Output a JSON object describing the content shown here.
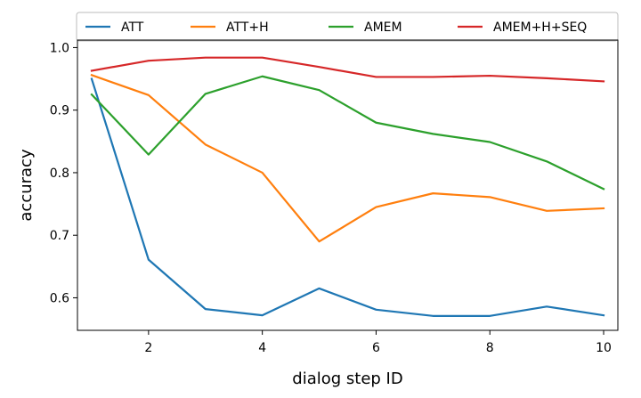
{
  "chart_data": {
    "type": "line",
    "title": "",
    "xlabel": "dialog step ID",
    "ylabel": "accuracy",
    "x": [
      1,
      2,
      3,
      4,
      5,
      6,
      7,
      8,
      9,
      10
    ],
    "xlim": [
      0.75,
      10.25
    ],
    "ylim": [
      0.548,
      1.012
    ],
    "xticks": [
      2,
      4,
      6,
      8,
      10
    ],
    "yticks": [
      0.6,
      0.7,
      0.8,
      0.9,
      1.0
    ],
    "xtick_labels": [
      "2",
      "4",
      "6",
      "8",
      "10"
    ],
    "ytick_labels": [
      "0.6",
      "0.7",
      "0.8",
      "0.9",
      "1.0"
    ],
    "grid": false,
    "legend_position": "top, outside plot, single row",
    "series": [
      {
        "name": "ATT",
        "color": "#1f77b4",
        "values": [
          0.95,
          0.661,
          0.582,
          0.572,
          0.615,
          0.581,
          0.571,
          0.571,
          0.586,
          0.572
        ]
      },
      {
        "name": "ATT+H",
        "color": "#ff7f0e",
        "values": [
          0.956,
          0.924,
          0.845,
          0.8,
          0.69,
          0.745,
          0.767,
          0.761,
          0.739,
          0.743
        ]
      },
      {
        "name": "AMEM",
        "color": "#2ca02c",
        "values": [
          0.925,
          0.829,
          0.926,
          0.954,
          0.932,
          0.88,
          0.862,
          0.849,
          0.818,
          0.774
        ]
      },
      {
        "name": "AMEM+H+SEQ",
        "color": "#d62728",
        "values": [
          0.963,
          0.979,
          0.984,
          0.984,
          0.969,
          0.953,
          0.953,
          0.955,
          0.951,
          0.946
        ]
      }
    ]
  }
}
